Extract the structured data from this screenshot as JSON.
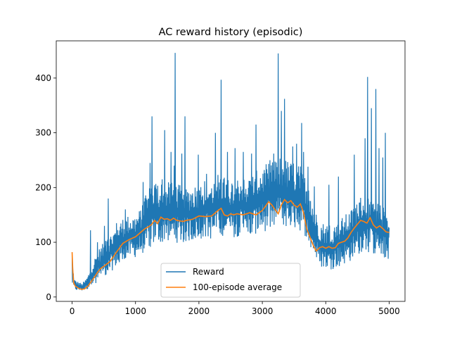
{
  "chart_data": {
    "type": "line",
    "title": "AC reward history (episodic)",
    "xlabel": "",
    "ylabel": "",
    "xlim": [
      -250,
      5250
    ],
    "ylim": [
      -8,
      468
    ],
    "x_ticks": [
      0,
      1000,
      2000,
      3000,
      4000,
      5000
    ],
    "y_ticks": [
      0,
      100,
      200,
      300,
      400
    ],
    "grid": false,
    "legend_placement": "lower-center",
    "series": [
      {
        "name": "Reward",
        "color": "#1f77b4",
        "kind": "noisy",
        "x": [
          0,
          10,
          30,
          60,
          100,
          150,
          200,
          250,
          300,
          350,
          400,
          500,
          600,
          700,
          800,
          900,
          1000,
          1100,
          1200,
          1300,
          1400,
          1500,
          1600,
          1700,
          1800,
          1900,
          2000,
          2100,
          2200,
          2300,
          2400,
          2500,
          2600,
          2700,
          2800,
          2900,
          3000,
          3100,
          3200,
          3300,
          3400,
          3500,
          3600,
          3700,
          3800,
          3900,
          4000,
          4100,
          4200,
          4300,
          4400,
          4500,
          4600,
          4700,
          4800,
          4900,
          5000
        ],
        "low": [
          20,
          18,
          14,
          12,
          11,
          11,
          12,
          14,
          18,
          22,
          28,
          35,
          45,
          55,
          65,
          70,
          72,
          78,
          88,
          95,
          98,
          102,
          100,
          98,
          100,
          102,
          105,
          108,
          105,
          110,
          112,
          108,
          110,
          112,
          110,
          115,
          118,
          122,
          120,
          128,
          126,
          124,
          120,
          108,
          80,
          55,
          50,
          50,
          55,
          60,
          65,
          75,
          85,
          80,
          75,
          70,
          68
        ],
        "high": [
          85,
          60,
          35,
          30,
          28,
          25,
          30,
          40,
          60,
          70,
          85,
          100,
          115,
          130,
          145,
          150,
          150,
          165,
          200,
          215,
          210,
          210,
          210,
          205,
          200,
          205,
          210,
          215,
          210,
          225,
          220,
          215,
          220,
          225,
          220,
          230,
          240,
          245,
          250,
          260,
          250,
          245,
          240,
          215,
          170,
          140,
          135,
          135,
          140,
          150,
          160,
          180,
          190,
          185,
          175,
          165,
          160
        ],
        "spikes": [
          [
            290,
            122
          ],
          [
            400,
            100
          ],
          [
            510,
            130
          ],
          [
            570,
            180
          ],
          [
            700,
            135
          ],
          [
            840,
            160
          ],
          [
            1120,
            210
          ],
          [
            1170,
            180
          ],
          [
            1230,
            245
          ],
          [
            1260,
            330
          ],
          [
            1310,
            200
          ],
          [
            1420,
            215
          ],
          [
            1460,
            305
          ],
          [
            1560,
            265
          ],
          [
            1610,
            240
          ],
          [
            1625,
            446
          ],
          [
            1730,
            262
          ],
          [
            1780,
            330
          ],
          [
            1990,
            260
          ],
          [
            2120,
            225
          ],
          [
            2260,
            300
          ],
          [
            2350,
            397
          ],
          [
            2450,
            265
          ],
          [
            2570,
            272
          ],
          [
            2700,
            265
          ],
          [
            2830,
            262
          ],
          [
            2900,
            315
          ],
          [
            3120,
            250
          ],
          [
            3180,
            262
          ],
          [
            3250,
            445
          ],
          [
            3300,
            340
          ],
          [
            3350,
            362
          ],
          [
            3480,
            275
          ],
          [
            3540,
            280
          ],
          [
            3620,
            318
          ],
          [
            3650,
            265
          ],
          [
            3720,
            238
          ],
          [
            3820,
            202
          ],
          [
            4050,
            205
          ],
          [
            4200,
            220
          ],
          [
            4450,
            260
          ],
          [
            4620,
            290
          ],
          [
            4660,
            402
          ],
          [
            4720,
            345
          ],
          [
            4790,
            380
          ],
          [
            4840,
            272
          ],
          [
            4900,
            255
          ],
          [
            4940,
            300
          ]
        ]
      },
      {
        "name": "100-episode average",
        "color": "#ff7f0e",
        "x": [
          0,
          10,
          25,
          50,
          100,
          150,
          200,
          250,
          300,
          350,
          400,
          450,
          500,
          600,
          700,
          800,
          900,
          1000,
          1100,
          1150,
          1200,
          1250,
          1300,
          1350,
          1400,
          1450,
          1500,
          1550,
          1600,
          1650,
          1700,
          1750,
          1800,
          1900,
          2000,
          2100,
          2200,
          2300,
          2350,
          2400,
          2450,
          2500,
          2550,
          2600,
          2700,
          2800,
          2900,
          3000,
          3050,
          3100,
          3150,
          3200,
          3250,
          3300,
          3350,
          3400,
          3450,
          3500,
          3550,
          3600,
          3650,
          3700,
          3750,
          3800,
          3850,
          3900,
          3950,
          4000,
          4050,
          4100,
          4150,
          4200,
          4250,
          4300,
          4350,
          4400,
          4450,
          4500,
          4550,
          4600,
          4650,
          4700,
          4750,
          4800,
          4850,
          4900,
          4950,
          5000
        ],
        "y": [
          82,
          50,
          26,
          20,
          16,
          14,
          15,
          20,
          28,
          36,
          45,
          52,
          56,
          65,
          82,
          98,
          105,
          110,
          120,
          125,
          128,
          132,
          140,
          134,
          146,
          142,
          143,
          140,
          144,
          140,
          139,
          138,
          140,
          142,
          148,
          147,
          148,
          158,
          162,
          150,
          148,
          152,
          150,
          152,
          150,
          154,
          150,
          158,
          166,
          174,
          168,
          160,
          152,
          168,
          178,
          172,
          176,
          168,
          164,
          170,
          154,
          125,
          110,
          95,
          84,
          90,
          92,
          89,
          92,
          89,
          90,
          98,
          100,
          102,
          108,
          118,
          126,
          133,
          140,
          138,
          135,
          145,
          132,
          126,
          130,
          125,
          119,
          118
        ]
      }
    ]
  }
}
